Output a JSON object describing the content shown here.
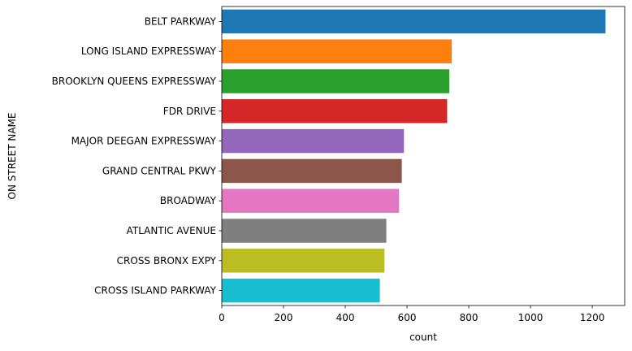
{
  "chart_data": {
    "type": "bar",
    "orientation": "horizontal",
    "categories": [
      "BELT PARKWAY",
      "LONG ISLAND EXPRESSWAY",
      "BROOKLYN QUEENS EXPRESSWAY",
      "FDR DRIVE",
      "MAJOR DEEGAN EXPRESSWAY",
      "GRAND CENTRAL PKWY",
      "BROADWAY",
      "ATLANTIC AVENUE",
      "CROSS BRONX EXPY",
      "CROSS ISLAND PARKWAY"
    ],
    "values": [
      1243,
      745,
      737,
      730,
      590,
      583,
      574,
      533,
      527,
      512
    ],
    "colors": [
      "#1f77b4",
      "#ff7f0e",
      "#2ca02c",
      "#d62728",
      "#9467bd",
      "#8c564b",
      "#e377c2",
      "#7f7f7f",
      "#bcbd22",
      "#17becf"
    ],
    "xlabel": "count",
    "ylabel": "ON STREET NAME",
    "xlim": [
      0,
      1305
    ],
    "xticks": [
      0,
      200,
      400,
      600,
      800,
      1000,
      1200
    ],
    "grid": false
  }
}
